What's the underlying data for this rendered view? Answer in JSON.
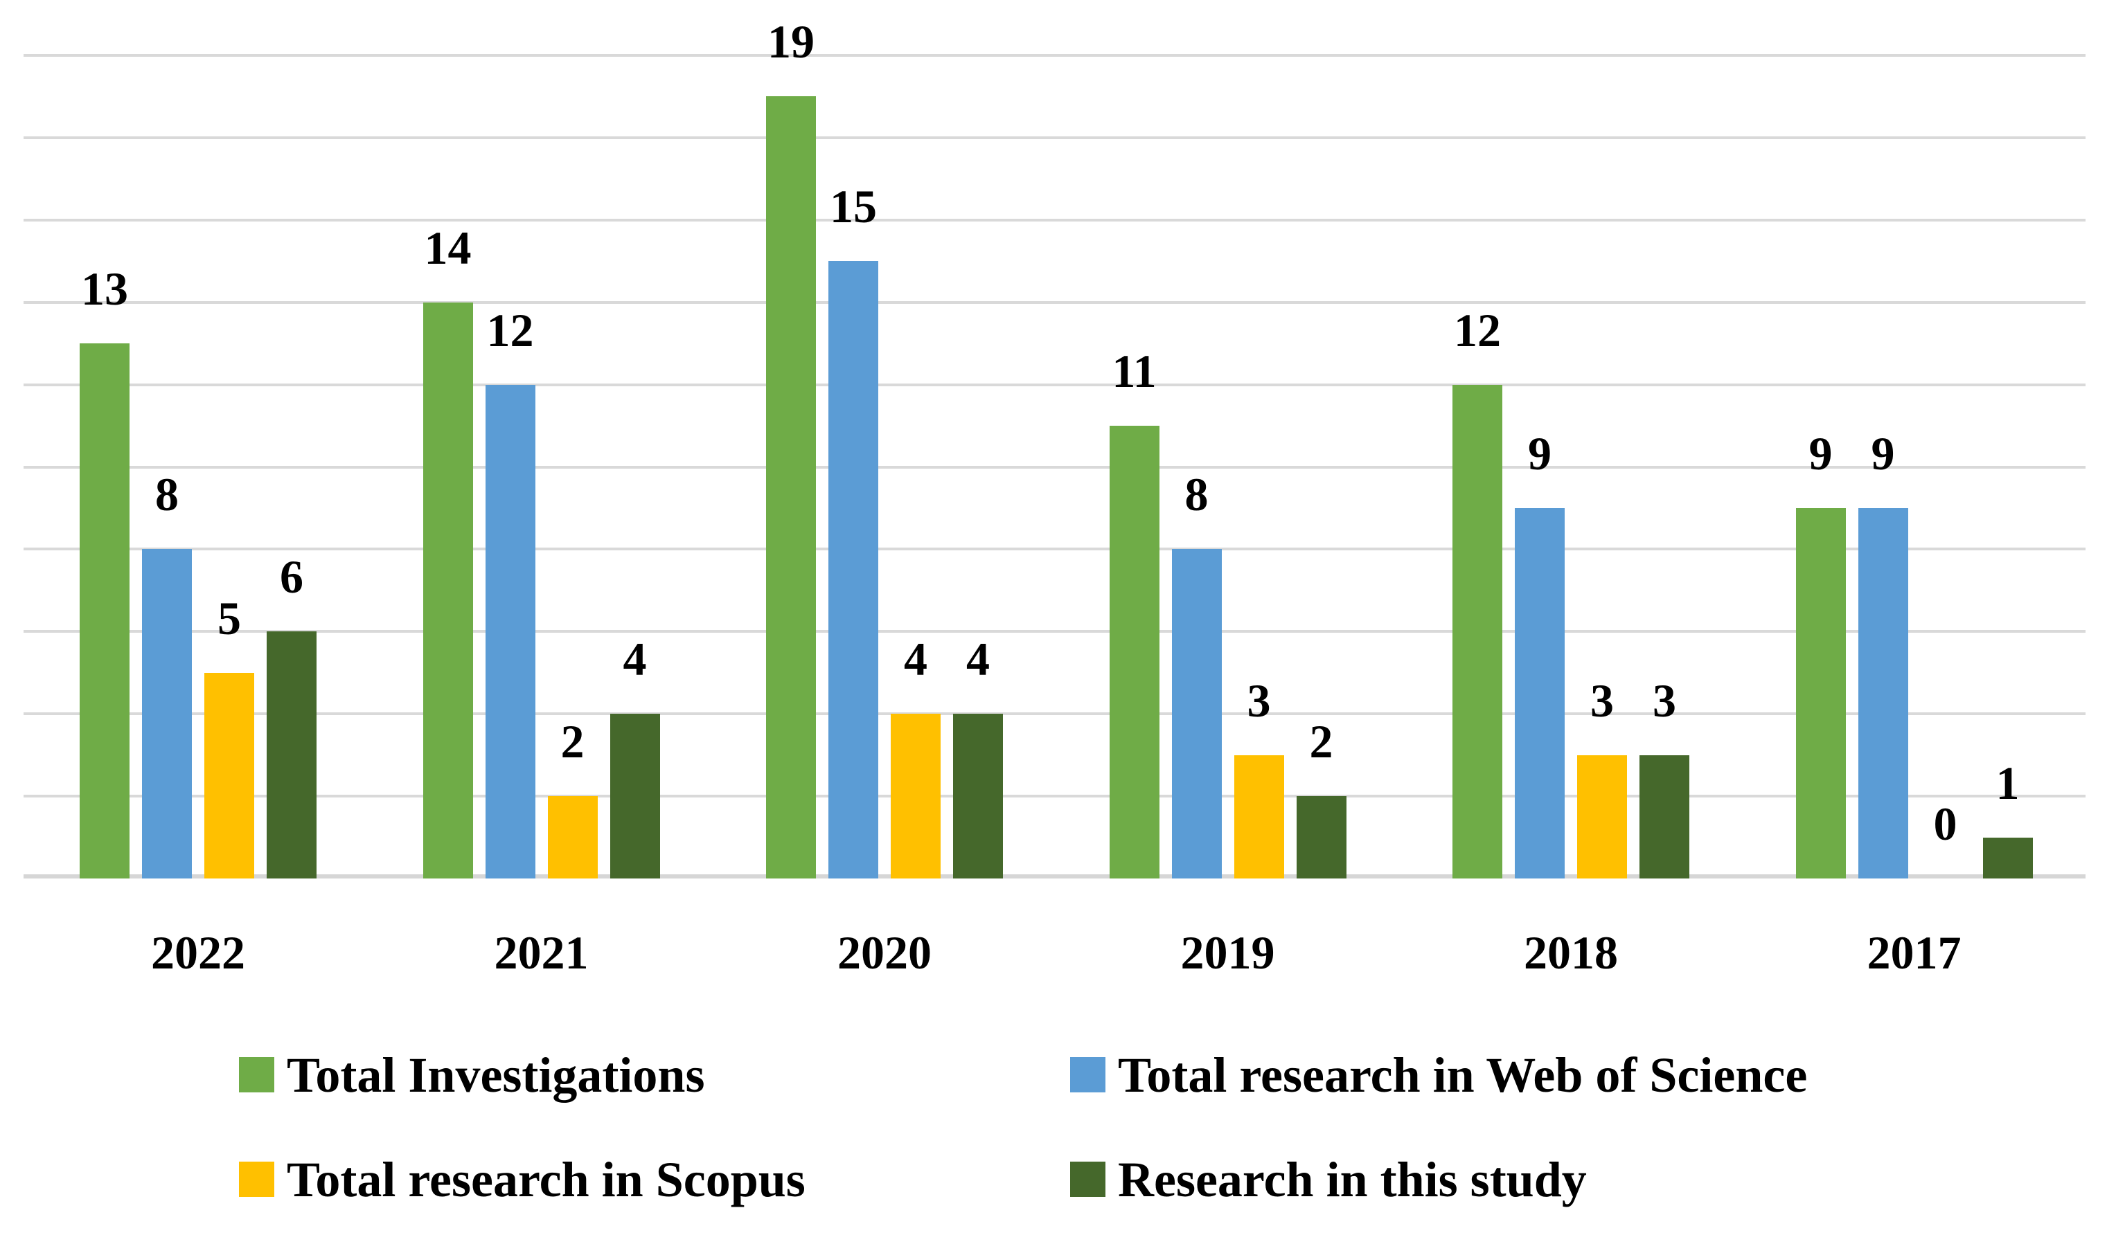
{
  "chart_data": {
    "type": "bar",
    "categories": [
      "2022",
      "2021",
      "2020",
      "2019",
      "2018",
      "2017"
    ],
    "series": [
      {
        "name": "Total Investigations",
        "color": "#6fac47",
        "values": [
          13,
          14,
          19,
          11,
          12,
          9
        ]
      },
      {
        "name": "Total research in Web of Science",
        "color": "#5b9cd5",
        "values": [
          8,
          12,
          15,
          8,
          9,
          9
        ]
      },
      {
        "name": "Total research in Scopus",
        "color": "#ffc000",
        "values": [
          5,
          2,
          4,
          3,
          3,
          0
        ]
      },
      {
        "name": "Research in this study",
        "color": "#45682b",
        "values": [
          6,
          4,
          4,
          2,
          3,
          1
        ]
      }
    ],
    "title": "",
    "xlabel": "",
    "ylabel": "",
    "ylim": [
      0,
      20
    ],
    "gridline_step": 2,
    "grid": "horizontal-only",
    "gridline_color": "#d9d9d9",
    "y_axis_tick_labels_visible": false,
    "data_labels": true,
    "legend_position": "bottom-two-columns"
  }
}
